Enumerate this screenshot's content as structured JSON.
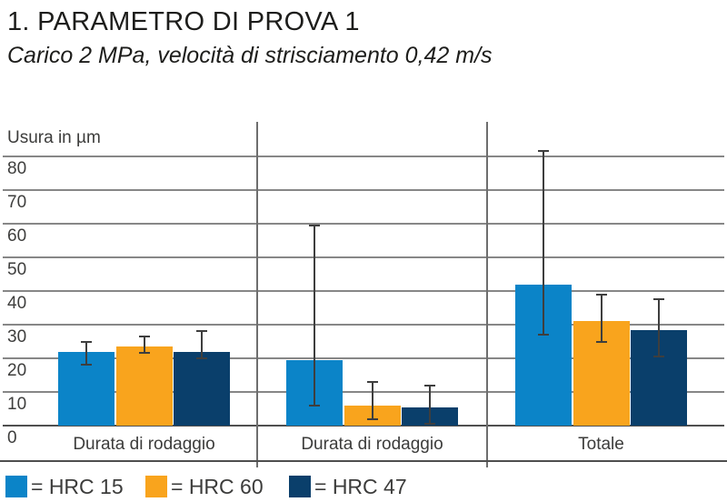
{
  "title": "1. PARAMETRO DI PROVA 1",
  "subtitle": "Carico 2 MPa, velocità di strisciamento 0,42 m/s",
  "chart_data": {
    "type": "bar",
    "title": "1. PARAMETRO DI PROVA 1",
    "subtitle": "Carico 2 MPa, velocità di strisciamento 0,42 m/s",
    "ylabel": "Usura in µm",
    "xlabel": "",
    "ylim": [
      0,
      85
    ],
    "yticks": [
      80,
      70,
      60,
      50,
      40,
      30,
      20,
      10,
      0
    ],
    "grid": true,
    "legend_position": "bottom",
    "categories": [
      "Durata di rodaggio",
      "Durata di rodaggio",
      "Totale"
    ],
    "series": [
      {
        "name": "HRC 15",
        "color": "#0B84C8",
        "values": [
          22,
          19.5,
          42
        ],
        "error_low": [
          18,
          6,
          27
        ],
        "error_high": [
          25,
          59.5,
          81.5
        ]
      },
      {
        "name": "HRC 60",
        "color": "#F9A41D",
        "values": [
          23.5,
          6,
          31
        ],
        "error_low": [
          21.5,
          2,
          25
        ],
        "error_high": [
          26.5,
          13,
          39
        ]
      },
      {
        "name": "HRC 47",
        "color": "#0A3F6B",
        "values": [
          22,
          5.5,
          28.5
        ],
        "error_low": [
          20,
          0.5,
          20.5
        ],
        "error_high": [
          28,
          12,
          37.5
        ]
      }
    ]
  },
  "legend": {
    "items": [
      {
        "label": "= HRC 15",
        "color": "#0B84C8",
        "series": "hrc-15"
      },
      {
        "label": "= HRC 60",
        "color": "#F9A41D",
        "series": "hrc-60"
      },
      {
        "label": "= HRC 47",
        "color": "#0A3F6B",
        "series": "hrc-47"
      }
    ]
  },
  "colors": {
    "title_text": "#1d1d1b",
    "secondary_text": "#3c3c3b",
    "gridline": "#878787",
    "axis_line": "#4f4f4f",
    "divider": "#6e6e6e",
    "error_bar": "#3e3e3e"
  }
}
